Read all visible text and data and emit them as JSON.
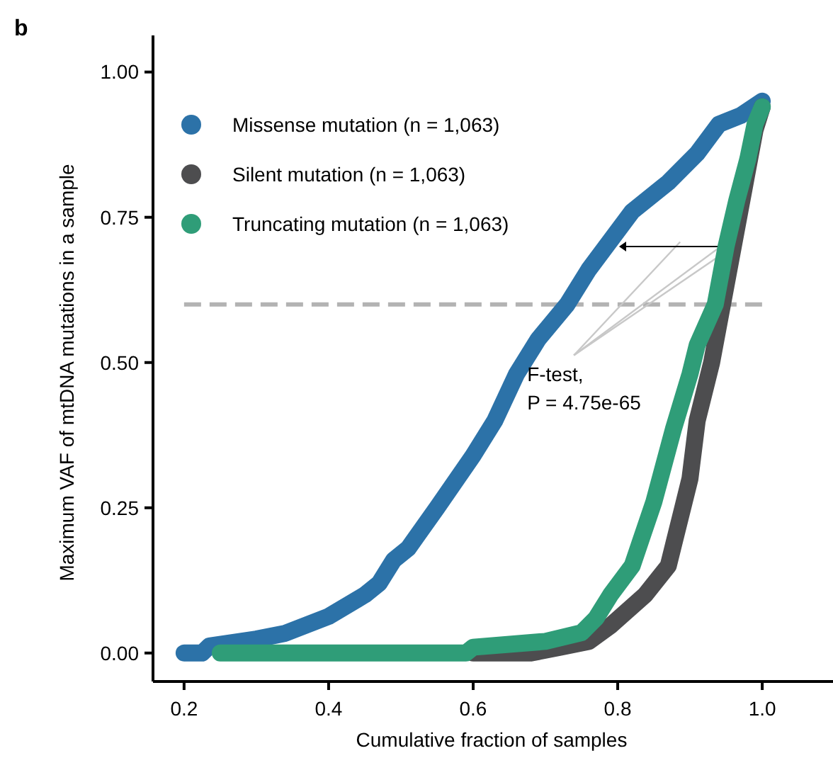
{
  "chart_data": {
    "type": "line",
    "xlabel": "Cumulative fraction of samples",
    "ylabel": "Maximum VAF of mtDNA mutations in a sample",
    "annotations": [
      "b",
      {
        "text": "F-test,\nP = 4.75e-65",
        "x": 0.955,
        "y": 0.71
      }
    ],
    "xlim": [
      0.157,
      1.094
    ],
    "ylim": [
      -0.049,
      1.063
    ],
    "xticks": [
      0.2,
      0.4,
      0.6,
      0.8,
      {
        "value": 1,
        "label": "1.0"
      }
    ],
    "yticks": [
      {
        "value": 0,
        "label": "0.00"
      },
      {
        "value": 0.25,
        "label": "0.25"
      },
      {
        "value": 0.5,
        "label": "0.50"
      },
      {
        "value": 0.75,
        "label": "0.75"
      },
      {
        "value": 1,
        "label": "1.00"
      }
    ],
    "legend": "top left",
    "line_style": "solid",
    "ref_lines": [
      {
        "axis": "y",
        "value": 0.6,
        "color": "#b3b3b3",
        "line_style": "dashed"
      }
    ],
    "series": [
      {
        "name": "Missense mutation (n = 1,063)",
        "color": "#2c72a8",
        "x": [
          0.2,
          0.225,
          0.235,
          0.3,
          0.34,
          0.4,
          0.45,
          0.47,
          0.49,
          0.51,
          0.55,
          0.6,
          0.63,
          0.66,
          0.69,
          0.73,
          0.76,
          0.79,
          0.82,
          0.87,
          0.91,
          0.94,
          0.97,
          1.0
        ],
        "values": [
          0,
          0,
          0.012,
          0.024,
          0.034,
          0.063,
          0.1,
          0.12,
          0.16,
          0.18,
          0.25,
          0.34,
          0.4,
          0.48,
          0.54,
          0.6,
          0.66,
          0.71,
          0.76,
          0.81,
          0.86,
          0.91,
          0.925,
          0.95
        ]
      },
      {
        "name": "Silent mutation (n = 1,063)",
        "color": "#4d4d4f",
        "x": [
          0.6,
          0.68,
          0.72,
          0.76,
          0.79,
          0.838,
          0.87,
          0.89,
          0.9,
          0.91,
          0.93,
          0.945,
          0.96,
          0.975,
          0.99,
          1.0
        ],
        "values": [
          0,
          0,
          0.01,
          0.02,
          0.047,
          0.1,
          0.15,
          0.25,
          0.3,
          0.4,
          0.5,
          0.6,
          0.7,
          0.8,
          0.9,
          0.94
        ]
      },
      {
        "name": "Truncating mutation (n = 1,063)",
        "color": "#2f9d78",
        "x": [
          0.25,
          0.59,
          0.6,
          0.7,
          0.75,
          0.77,
          0.79,
          0.82,
          0.85,
          0.877,
          0.9,
          0.91,
          0.935,
          0.95,
          0.965,
          0.98,
          0.99,
          1.0
        ],
        "values": [
          0,
          0,
          0.01,
          0.02,
          0.035,
          0.06,
          0.1,
          0.15,
          0.26,
          0.385,
          0.48,
          0.53,
          0.6,
          0.7,
          0.78,
          0.85,
          0.91,
          0.94
        ]
      }
    ]
  }
}
